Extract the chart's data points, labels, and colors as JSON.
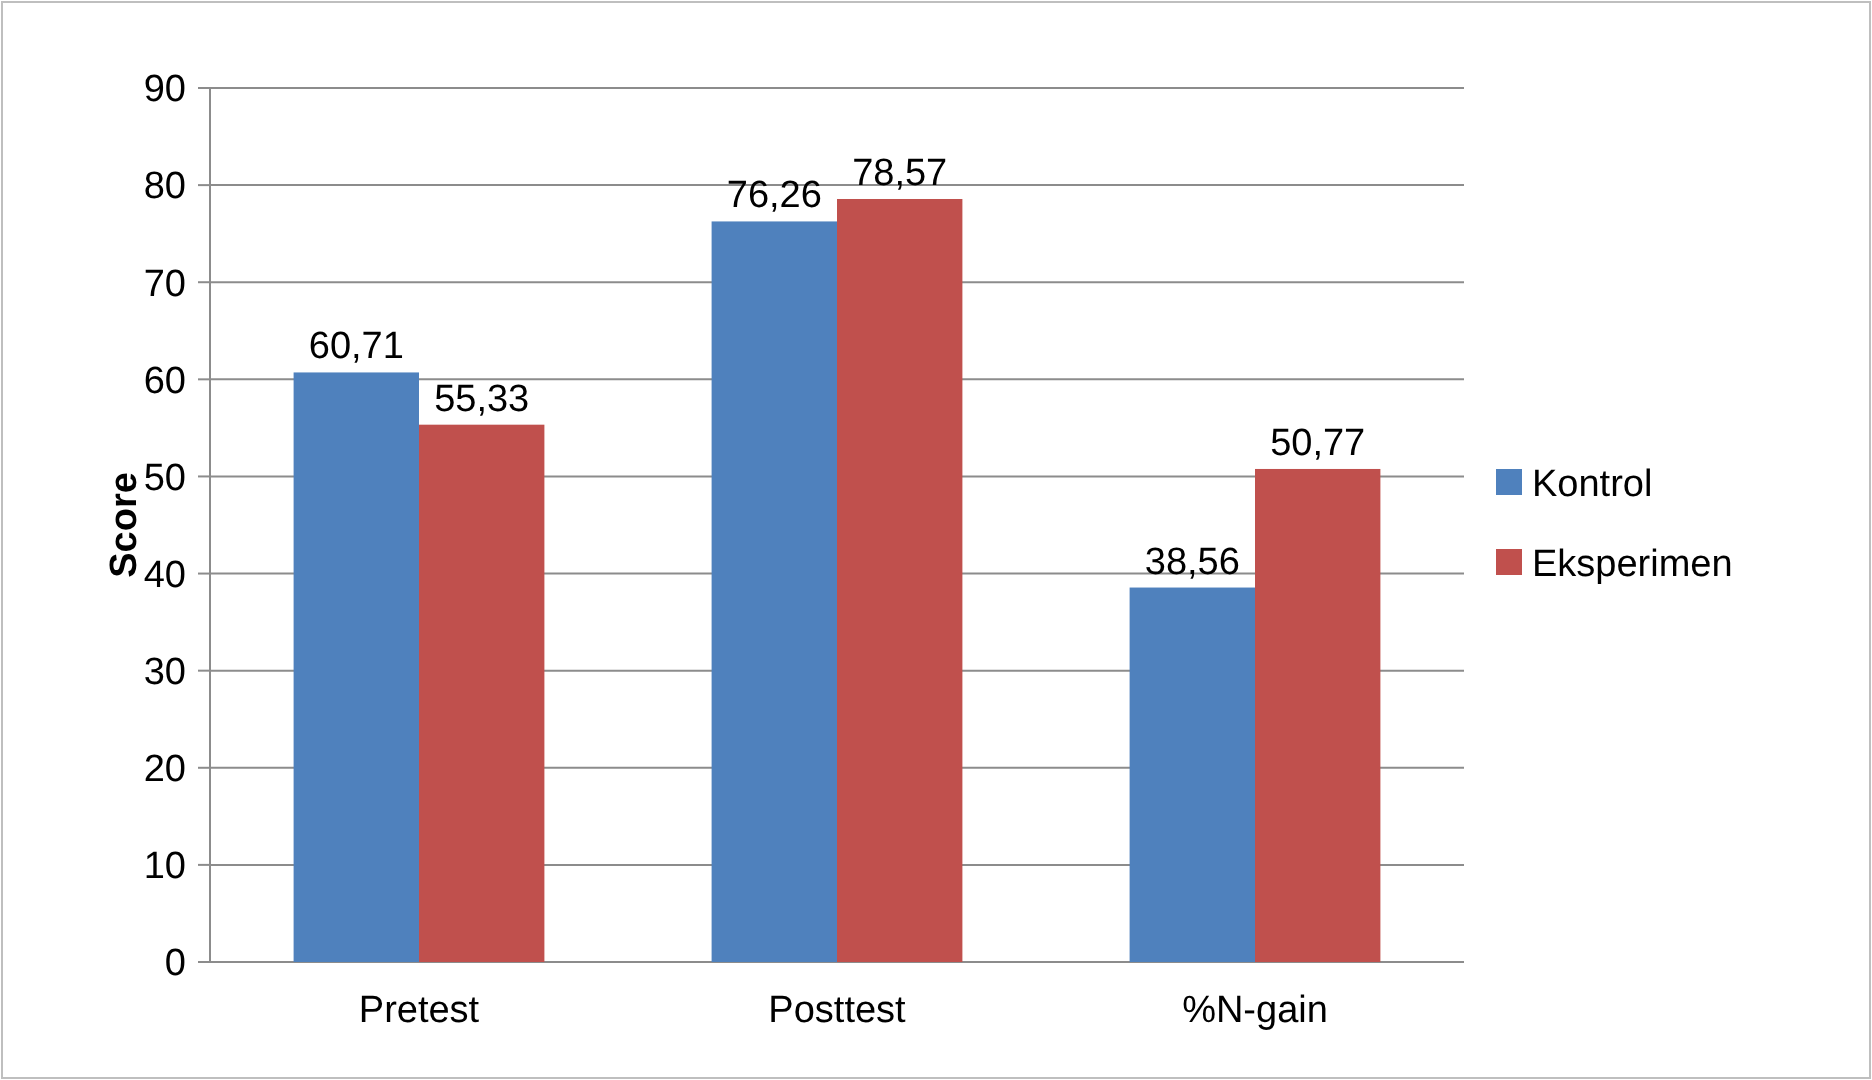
{
  "chart_data": {
    "type": "bar",
    "ylabel": "Score",
    "categories": [
      "Pretest",
      "Posttest",
      "%N-gain"
    ],
    "series": [
      {
        "name": "Kontrol",
        "color": "#4f81bd",
        "values": [
          60.71,
          76.26,
          38.56
        ],
        "value_labels": [
          "60,71",
          "76,26",
          "38,56"
        ]
      },
      {
        "name": "Eksperimen",
        "color": "#c0504d",
        "values": [
          55.33,
          78.57,
          50.77
        ],
        "value_labels": [
          "55,33",
          "78,57",
          "50,77"
        ]
      }
    ],
    "ylim": [
      0,
      90
    ],
    "yticks": [
      0,
      10,
      20,
      30,
      40,
      50,
      60,
      70,
      80,
      90
    ],
    "grid": "y",
    "legend": "right"
  }
}
